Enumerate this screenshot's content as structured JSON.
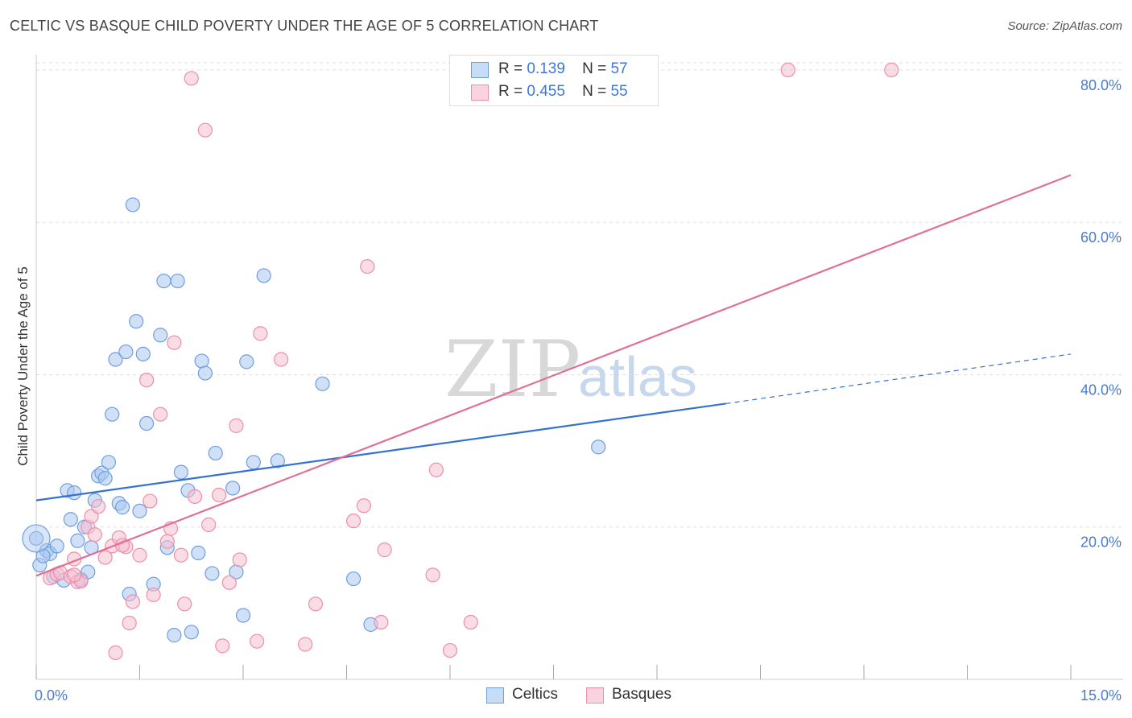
{
  "title": "CELTIC VS BASQUE CHILD POVERTY UNDER THE AGE OF 5 CORRELATION CHART",
  "source": "Source: ZipAtlas.com",
  "watermark": {
    "zip": "ZIP",
    "atlas": "atlas"
  },
  "colors": {
    "celtics_fill": "#a9c8f0",
    "celtics_stroke": "#6f9ee0",
    "celtics_line": "#3572d0",
    "basques_fill": "#f6bfd0",
    "basques_stroke": "#ec8fab",
    "basques_line": "#e07096",
    "grid": "#dddddd",
    "tick_text": "#4a7cc9"
  },
  "legend": {
    "celtics": {
      "r_label": "R =",
      "r_value": "0.139",
      "n_label": "N =",
      "n_value": "57"
    },
    "basques": {
      "r_label": "R =",
      "r_value": "0.455",
      "n_label": "N =",
      "n_value": "55"
    }
  },
  "bottom_legend": {
    "celtics": "Celtics",
    "basques": "Basques"
  },
  "chart_data": {
    "type": "scatter",
    "title": "CELTIC VS BASQUE CHILD POVERTY UNDER THE AGE OF 5 CORRELATION CHART",
    "xlabel": "",
    "ylabel": "Child Poverty Under the Age of 5",
    "xlim": [
      0,
      15
    ],
    "ylim": [
      0,
      82
    ],
    "x_tick_labels": [
      "0.0%",
      "15.0%"
    ],
    "y_ticks": [
      20,
      40,
      60,
      80
    ],
    "y_tick_labels": [
      "20.0%",
      "40.0%",
      "60.0%",
      "80.0%"
    ],
    "grid": true,
    "legend_position": "top-center",
    "series": [
      {
        "name": "Celtics",
        "r": 0.139,
        "n": 57,
        "trend": {
          "x0": 0,
          "y0": 23.5,
          "x1": 10.0,
          "y1": 36.2,
          "dashed_to_x": 15,
          "dashed_to_y": 42.7
        },
        "points": [
          [
            0.0,
            18.5
          ],
          [
            0.05,
            15.0
          ],
          [
            0.15,
            16.9
          ],
          [
            0.2,
            16.5
          ],
          [
            0.25,
            13.5
          ],
          [
            0.3,
            17.5
          ],
          [
            0.4,
            13.0
          ],
          [
            0.45,
            24.8
          ],
          [
            0.5,
            21.0
          ],
          [
            0.55,
            24.5
          ],
          [
            0.6,
            18.2
          ],
          [
            0.65,
            13.1
          ],
          [
            0.7,
            20.0
          ],
          [
            0.75,
            14.1
          ],
          [
            0.8,
            17.3
          ],
          [
            0.85,
            23.5
          ],
          [
            0.9,
            26.7
          ],
          [
            0.95,
            27.1
          ],
          [
            1.0,
            26.4
          ],
          [
            1.05,
            28.5
          ],
          [
            1.1,
            34.8
          ],
          [
            1.15,
            42.0
          ],
          [
            1.2,
            23.1
          ],
          [
            1.25,
            22.6
          ],
          [
            1.3,
            43.0
          ],
          [
            1.35,
            11.2
          ],
          [
            1.4,
            62.3
          ],
          [
            1.45,
            47.0
          ],
          [
            1.5,
            22.1
          ],
          [
            1.55,
            42.7
          ],
          [
            1.6,
            33.6
          ],
          [
            1.7,
            12.5
          ],
          [
            1.8,
            45.2
          ],
          [
            1.85,
            52.3
          ],
          [
            1.9,
            17.3
          ],
          [
            2.0,
            5.8
          ],
          [
            2.05,
            52.3
          ],
          [
            2.1,
            27.2
          ],
          [
            2.2,
            24.8
          ],
          [
            2.25,
            6.2
          ],
          [
            2.35,
            16.6
          ],
          [
            2.4,
            41.8
          ],
          [
            2.45,
            40.2
          ],
          [
            2.55,
            13.9
          ],
          [
            2.6,
            29.7
          ],
          [
            2.85,
            25.1
          ],
          [
            2.9,
            14.1
          ],
          [
            3.0,
            8.4
          ],
          [
            3.05,
            41.7
          ],
          [
            3.15,
            28.5
          ],
          [
            3.3,
            53.0
          ],
          [
            3.5,
            28.7
          ],
          [
            4.15,
            38.8
          ],
          [
            4.6,
            13.2
          ],
          [
            4.85,
            7.2
          ],
          [
            8.15,
            30.5
          ],
          [
            0.1,
            16.2
          ]
        ]
      },
      {
        "name": "Basques",
        "r": 0.455,
        "n": 55,
        "trend": {
          "x0": 0,
          "y0": 13.6,
          "x1": 15,
          "y1": 66.2
        },
        "points": [
          [
            0.2,
            13.3
          ],
          [
            0.3,
            13.8
          ],
          [
            0.35,
            14.0
          ],
          [
            0.5,
            13.5
          ],
          [
            0.55,
            15.8
          ],
          [
            0.6,
            12.8
          ],
          [
            0.65,
            12.9
          ],
          [
            0.75,
            20.0
          ],
          [
            0.8,
            21.4
          ],
          [
            0.85,
            19.0
          ],
          [
            0.9,
            22.7
          ],
          [
            1.0,
            16.0
          ],
          [
            1.1,
            17.5
          ],
          [
            1.15,
            3.5
          ],
          [
            1.2,
            18.6
          ],
          [
            1.3,
            17.4
          ],
          [
            1.35,
            7.4
          ],
          [
            1.4,
            10.2
          ],
          [
            1.5,
            16.3
          ],
          [
            1.6,
            39.3
          ],
          [
            1.65,
            23.4
          ],
          [
            1.7,
            11.1
          ],
          [
            1.8,
            34.8
          ],
          [
            1.9,
            18.1
          ],
          [
            1.95,
            19.8
          ],
          [
            2.0,
            44.2
          ],
          [
            2.1,
            16.3
          ],
          [
            2.15,
            9.9
          ],
          [
            2.25,
            78.9
          ],
          [
            2.3,
            24.0
          ],
          [
            2.45,
            72.1
          ],
          [
            2.5,
            20.3
          ],
          [
            2.65,
            24.2
          ],
          [
            2.7,
            4.4
          ],
          [
            2.8,
            12.7
          ],
          [
            2.9,
            33.3
          ],
          [
            2.95,
            15.7
          ],
          [
            3.2,
            5.0
          ],
          [
            3.25,
            45.4
          ],
          [
            3.55,
            42.0
          ],
          [
            3.9,
            4.6
          ],
          [
            4.05,
            9.9
          ],
          [
            4.6,
            20.8
          ],
          [
            4.75,
            22.8
          ],
          [
            4.8,
            54.2
          ],
          [
            5.0,
            7.5
          ],
          [
            5.05,
            17.0
          ],
          [
            5.75,
            13.7
          ],
          [
            5.8,
            27.5
          ],
          [
            6.0,
            3.8
          ],
          [
            6.3,
            7.5
          ],
          [
            10.9,
            80.0
          ],
          [
            12.4,
            80.0
          ],
          [
            0.55,
            13.7
          ],
          [
            1.25,
            17.6
          ]
        ]
      }
    ]
  }
}
